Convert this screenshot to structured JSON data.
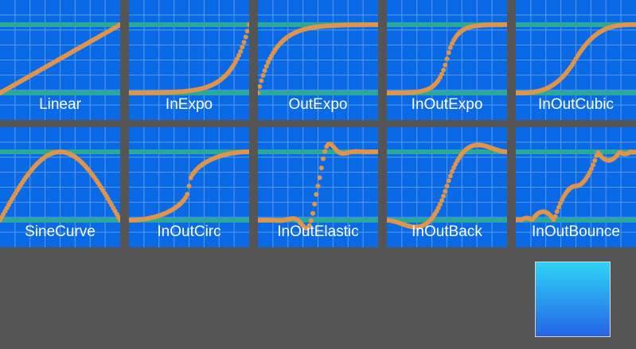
{
  "colors": {
    "tile_bg": "#0a6ae6",
    "grid_line": "#5c9be6",
    "guide_band": "#2aa89a",
    "curve": "#e0944a",
    "background": "#555555",
    "preview_top": "#2fd4f6",
    "preview_bottom": "#2563e6"
  },
  "tiles": [
    {
      "label": "Linear",
      "easing": "linear"
    },
    {
      "label": "InExpo",
      "easing": "inExpo"
    },
    {
      "label": "OutExpo",
      "easing": "outExpo"
    },
    {
      "label": "InOutExpo",
      "easing": "inOutExpo"
    },
    {
      "label": "InOutCubic",
      "easing": "inOutCubic"
    },
    {
      "label": "SineCurve",
      "easing": "sineCurve"
    },
    {
      "label": "InOutCirc",
      "easing": "inOutCirc"
    },
    {
      "label": "InOutElastic",
      "easing": "inOutElastic"
    },
    {
      "label": "InOutBack",
      "easing": "inOutBack"
    },
    {
      "label": "InOutBounce",
      "easing": "inOutBounce"
    }
  ]
}
